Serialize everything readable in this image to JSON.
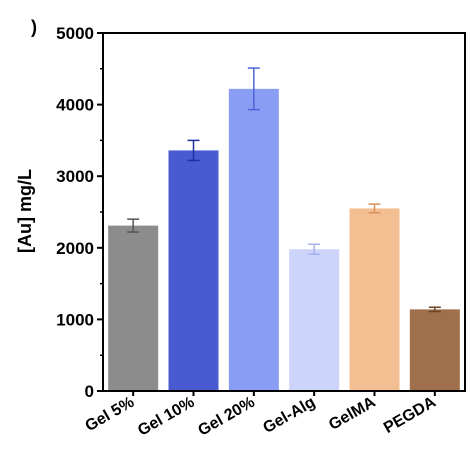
{
  "panel_mark": ")",
  "chart_data": {
    "type": "bar",
    "title": "",
    "xlabel": "",
    "ylabel": "[Au] mg/L",
    "ylim": [
      0,
      5000
    ],
    "yticks": [
      0,
      1000,
      2000,
      3000,
      4000,
      5000
    ],
    "yticks_labels": [
      "0",
      "1000",
      "2000",
      "3000",
      "4000",
      "5000"
    ],
    "categories": [
      "Gel 5%",
      "Gel 10%",
      "Gel 20%",
      "Gel-Alg",
      "GelMA",
      "PEGDA"
    ],
    "values": [
      2310,
      3360,
      4220,
      1980,
      2550,
      1140
    ],
    "errors": [
      90,
      140,
      290,
      70,
      60,
      30
    ],
    "colors": [
      "#8c8c8c",
      "#4a5bd1",
      "#8a9df5",
      "#cdd4fb",
      "#f4be93",
      "#a0704c"
    ],
    "error_colors": [
      "#555555",
      "#1f2e9e",
      "#4f63d8",
      "#a7b2ef",
      "#d8925c",
      "#6b4426"
    ],
    "grid": false,
    "legend": "none"
  }
}
